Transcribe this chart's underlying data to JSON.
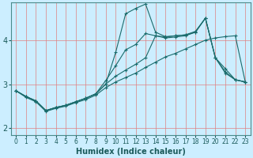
{
  "xlabel": "Humidex (Indice chaleur)",
  "bg_color": "#cceeff",
  "line_color": "#1a6b6b",
  "grid_color": "#e08080",
  "xlim": [
    -0.5,
    23.5
  ],
  "ylim": [
    1.85,
    4.85
  ],
  "xticks": [
    0,
    1,
    2,
    3,
    4,
    5,
    6,
    7,
    8,
    9,
    10,
    11,
    12,
    13,
    14,
    15,
    16,
    17,
    18,
    19,
    20,
    21,
    22,
    23
  ],
  "yticks": [
    2,
    3,
    4
  ],
  "line1_x": [
    0,
    1,
    2,
    3,
    4,
    5,
    6,
    7,
    8,
    9,
    10,
    11,
    12,
    13,
    14,
    15,
    16,
    17,
    18,
    19,
    20,
    21,
    22,
    23
  ],
  "line1_y": [
    2.85,
    2.72,
    2.62,
    2.4,
    2.47,
    2.52,
    2.6,
    2.68,
    2.78,
    3.0,
    3.18,
    3.32,
    3.45,
    3.6,
    4.1,
    4.05,
    4.07,
    4.1,
    4.18,
    4.5,
    3.6,
    3.28,
    3.1,
    3.05
  ],
  "line2_x": [
    0,
    1,
    2,
    3,
    4,
    5,
    6,
    7,
    8,
    9,
    10,
    11,
    12,
    13,
    14,
    15,
    16,
    17,
    18,
    19,
    20,
    21,
    22,
    23
  ],
  "line2_y": [
    2.85,
    2.72,
    2.62,
    2.4,
    2.47,
    2.52,
    2.6,
    2.68,
    2.78,
    3.0,
    3.72,
    4.6,
    4.72,
    4.82,
    4.18,
    4.08,
    4.1,
    4.12,
    4.18,
    4.5,
    3.6,
    3.35,
    3.1,
    3.05
  ],
  "line3_x": [
    0,
    1,
    2,
    3,
    4,
    5,
    6,
    7,
    8,
    9,
    10,
    11,
    12,
    13,
    14,
    15,
    16,
    17,
    18,
    19,
    20,
    21,
    22,
    23
  ],
  "line3_y": [
    2.85,
    2.72,
    2.62,
    2.4,
    2.47,
    2.52,
    2.6,
    2.68,
    2.78,
    3.08,
    3.42,
    3.78,
    3.9,
    4.15,
    4.1,
    4.07,
    4.1,
    4.12,
    4.2,
    4.5,
    3.6,
    3.25,
    3.1,
    3.05
  ],
  "line4_x": [
    0,
    1,
    2,
    3,
    4,
    5,
    6,
    7,
    8,
    9,
    10,
    11,
    12,
    13,
    14,
    15,
    16,
    17,
    18,
    19,
    20,
    21,
    22,
    23
  ],
  "line4_y": [
    2.85,
    2.7,
    2.6,
    2.38,
    2.45,
    2.5,
    2.58,
    2.65,
    2.75,
    2.92,
    3.05,
    3.15,
    3.25,
    3.38,
    3.5,
    3.62,
    3.7,
    3.8,
    3.9,
    4.0,
    4.05,
    4.08,
    4.1,
    3.05
  ]
}
